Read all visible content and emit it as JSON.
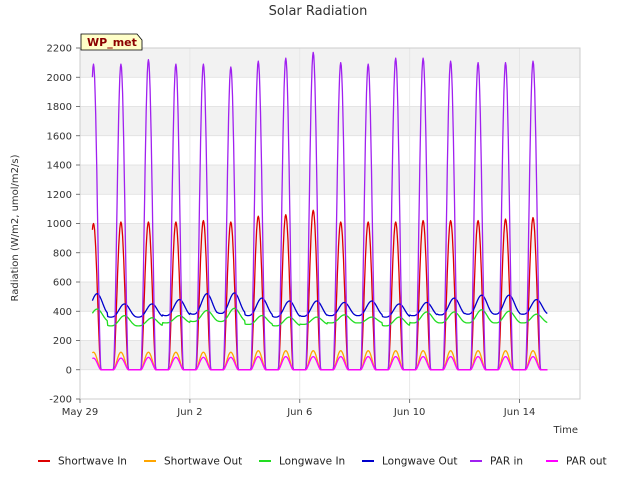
{
  "chart_data": {
    "type": "line",
    "title": "Solar Radiation",
    "xlabel": "Time",
    "ylabel": "Radiation (W/m2, umol/m2/s)",
    "site_label": "WP_met",
    "ylim": [
      -200,
      2200
    ],
    "yticks": [
      -200,
      0,
      200,
      400,
      600,
      800,
      1000,
      1200,
      1400,
      1600,
      1800,
      2000,
      2200
    ],
    "xlim_days": [
      0,
      18.2
    ],
    "xticks": [
      {
        "label": "May 29",
        "day": 0
      },
      {
        "label": "Jun 2",
        "day": 4
      },
      {
        "label": "Jun 6",
        "day": 8
      },
      {
        "label": "Jun 10",
        "day": 12
      },
      {
        "label": "Jun 14",
        "day": 16
      }
    ],
    "grid": true,
    "legend_position": "bottom",
    "series": [
      {
        "name": "Shortwave In",
        "color": "#dd0000",
        "daily_peaks": [
          1000,
          1010,
          1010,
          1010,
          1020,
          1010,
          1050,
          1060,
          1090,
          1010,
          1010,
          1010,
          1020,
          1020,
          1020,
          1030,
          1040
        ],
        "night_value": 0
      },
      {
        "name": "Shortwave Out",
        "color": "#ffa500",
        "daily_peaks": [
          120,
          120,
          120,
          120,
          120,
          120,
          130,
          130,
          130,
          130,
          130,
          130,
          130,
          130,
          130,
          130,
          130
        ],
        "night_value": 0
      },
      {
        "name": "Longwave In",
        "color": "#22dd22",
        "daily_peaks": [
          415,
          370,
          355,
          370,
          405,
          420,
          370,
          360,
          360,
          375,
          360,
          360,
          395,
          395,
          410,
          400,
          380
        ],
        "daily_troughs": [
          330,
          300,
          300,
          320,
          330,
          330,
          310,
          300,
          310,
          320,
          320,
          300,
          320,
          320,
          320,
          320,
          320
        ]
      },
      {
        "name": "Longwave Out",
        "color": "#0000cc",
        "daily_peaks": [
          520,
          450,
          450,
          480,
          520,
          525,
          490,
          470,
          470,
          460,
          470,
          450,
          460,
          490,
          510,
          510,
          480
        ],
        "daily_troughs": [
          380,
          360,
          360,
          370,
          380,
          385,
          370,
          360,
          365,
          370,
          370,
          360,
          370,
          375,
          380,
          380,
          380
        ]
      },
      {
        "name": "PAR in",
        "color": "#a020f0",
        "daily_peaks": [
          2090,
          2090,
          2120,
          2090,
          2090,
          2070,
          2110,
          2130,
          2170,
          2100,
          2090,
          2130,
          2130,
          2110,
          2100,
          2100,
          2110
        ],
        "night_value": 0
      },
      {
        "name": "PAR out",
        "color": "#ff00ff",
        "daily_peaks": [
          80,
          80,
          85,
          85,
          85,
          85,
          90,
          90,
          90,
          90,
          90,
          90,
          90,
          90,
          90,
          90,
          90
        ],
        "night_value": 0
      }
    ]
  }
}
